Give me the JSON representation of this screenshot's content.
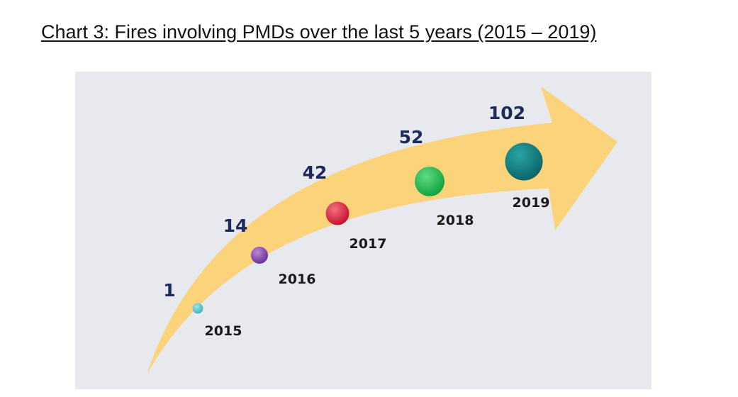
{
  "title": "Chart 3: Fires involving PMDs over the last 5 years (2015 – 2019)",
  "chart_data": {
    "type": "scatter",
    "title": "Chart 3: Fires involving PMDs over the last 5 years (2015 – 2019)",
    "categories": [
      "2015",
      "2016",
      "2017",
      "2018",
      "2019"
    ],
    "values": [
      1,
      14,
      42,
      52,
      102
    ],
    "value_labels": [
      "1",
      "14",
      "42",
      "52",
      "102"
    ],
    "colors": {
      "arrow": "#fad37a",
      "panel_background": "#e8e9ee",
      "value_text": "#1d2a5c",
      "year_text": "#1a1a1a",
      "markers": [
        "#3fb3b8",
        "#7a3aa6",
        "#d91e3c",
        "#18b34a",
        "#0f7d7f"
      ]
    },
    "grid": false,
    "legend": "none"
  }
}
